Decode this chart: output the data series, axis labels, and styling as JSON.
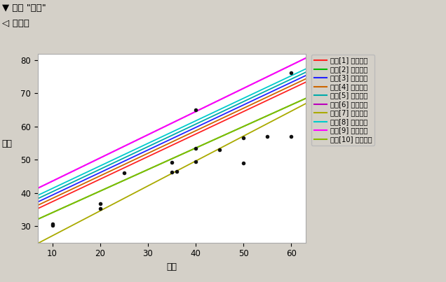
{
  "title1": "响应 \"产量\"",
  "title2": "回归图",
  "xlabel": "湿度",
  "ylabel": "产量",
  "xlim": [
    7,
    63
  ],
  "ylim": [
    25,
    82
  ],
  "xticks": [
    10,
    20,
    30,
    40,
    50,
    60
  ],
  "yticks": [
    30,
    40,
    50,
    60,
    70,
    80
  ],
  "bg_color": "#d4d0c8",
  "plot_bg_color": "#ffffff",
  "lines": [
    {
      "label": "品种[1] 的拟合线",
      "color": "#ff2222",
      "intercept": 30.5,
      "slope": 0.68
    },
    {
      "label": "品种[2] 的拟合线",
      "color": "#00bb00",
      "intercept": 27.5,
      "slope": 0.65
    },
    {
      "label": "品种[3] 的拟合线",
      "color": "#2222ff",
      "intercept": 32.5,
      "slope": 0.68
    },
    {
      "label": "品种[4] 的拟合线",
      "color": "#cc6600",
      "intercept": 31.5,
      "slope": 0.68
    },
    {
      "label": "品种[5] 的拟合线",
      "color": "#00aaaa",
      "intercept": 33.5,
      "slope": 0.68
    },
    {
      "label": "品种[6] 的拟合线",
      "color": "#bb00bb",
      "intercept": 36.5,
      "slope": 0.7
    },
    {
      "label": "品种[7] 的拟合线",
      "color": "#aaaa00",
      "intercept": 19.5,
      "slope": 0.752
    },
    {
      "label": "品种[8] 的拟合线",
      "color": "#00cccc",
      "intercept": 34.5,
      "slope": 0.68
    },
    {
      "label": "品种[9] 的拟合线",
      "color": "#ff00ff",
      "intercept": 36.5,
      "slope": 0.7
    },
    {
      "label": "品种[10] 的拟合线",
      "color": "#88bb00",
      "intercept": 27.5,
      "slope": 0.65
    }
  ],
  "scatter_x": [
    10,
    10,
    20,
    20,
    25,
    35,
    35,
    36,
    40,
    40,
    40,
    45,
    50,
    50,
    55,
    60,
    60
  ],
  "scatter_y": [
    30.2,
    30.7,
    35.2,
    36.8,
    46.0,
    46.2,
    49.2,
    46.5,
    65.0,
    53.5,
    49.5,
    53.0,
    49.0,
    56.5,
    57.0,
    76.2,
    57.0
  ],
  "scatter_color": "#111111",
  "scatter_size": 16
}
